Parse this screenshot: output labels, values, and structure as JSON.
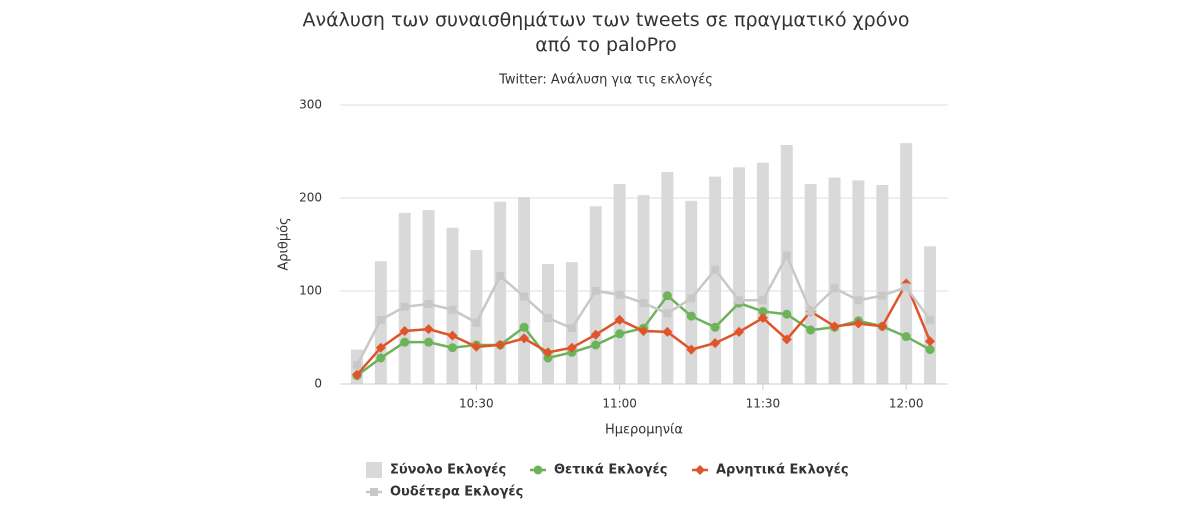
{
  "chart_data": {
    "type": "combo",
    "title": "Ανάλυση των συναισθημάτων των tweets σε πραγματικό χρόνο από το paloPro",
    "subtitle": "Twitter: Ανάλυση για τις εκλογές",
    "x_label": "Ημερομηνία",
    "y_label": "Αριθμός",
    "x": [
      "10:05",
      "10:10",
      "10:15",
      "10:20",
      "10:25",
      "10:30",
      "10:35",
      "10:40",
      "10:45",
      "10:50",
      "10:55",
      "11:00",
      "11:05",
      "11:10",
      "11:15",
      "11:20",
      "11:25",
      "11:30",
      "11:35",
      "11:40",
      "11:45",
      "11:50",
      "11:55",
      "12:00",
      "12:05"
    ],
    "xticks": [
      "10:30",
      "11:00",
      "11:30",
      "12:00"
    ],
    "ylim": [
      0,
      300
    ],
    "yticks": [
      0,
      100,
      200,
      300
    ],
    "grid": true,
    "series": [
      {
        "name": "Σύνολο Εκλογές",
        "type": "bar",
        "marker": "square",
        "color": "#d9d9d9",
        "values": [
          37,
          132,
          184,
          187,
          168,
          144,
          196,
          201,
          129,
          131,
          191,
          215,
          203,
          228,
          197,
          223,
          233,
          238,
          257,
          215,
          222,
          219,
          214,
          259,
          148
        ]
      },
      {
        "name": "Θετικά Εκλογές",
        "type": "line",
        "marker": "circle",
        "color": "#6db35a",
        "values": [
          9,
          28,
          45,
          45,
          39,
          42,
          42,
          61,
          28,
          34,
          42,
          54,
          60,
          95,
          73,
          61,
          87,
          78,
          75,
          58,
          61,
          68,
          62,
          51,
          37
        ]
      },
      {
        "name": "Αρνητικά Εκλογές",
        "type": "line",
        "marker": "diamond",
        "color": "#e0542a",
        "values": [
          10,
          39,
          57,
          59,
          52,
          40,
          42,
          49,
          34,
          39,
          53,
          69,
          57,
          56,
          37,
          44,
          56,
          71,
          48,
          78,
          62,
          65,
          62,
          108,
          46
        ]
      },
      {
        "name": "Ουδέτερα Εκλογές",
        "type": "line",
        "marker": "square",
        "color": "#c8c8c8",
        "values": [
          20,
          69,
          83,
          86,
          80,
          66,
          116,
          94,
          71,
          60,
          100,
          96,
          87,
          76,
          92,
          123,
          90,
          90,
          138,
          78,
          103,
          90,
          95,
          104,
          69
        ]
      }
    ]
  }
}
